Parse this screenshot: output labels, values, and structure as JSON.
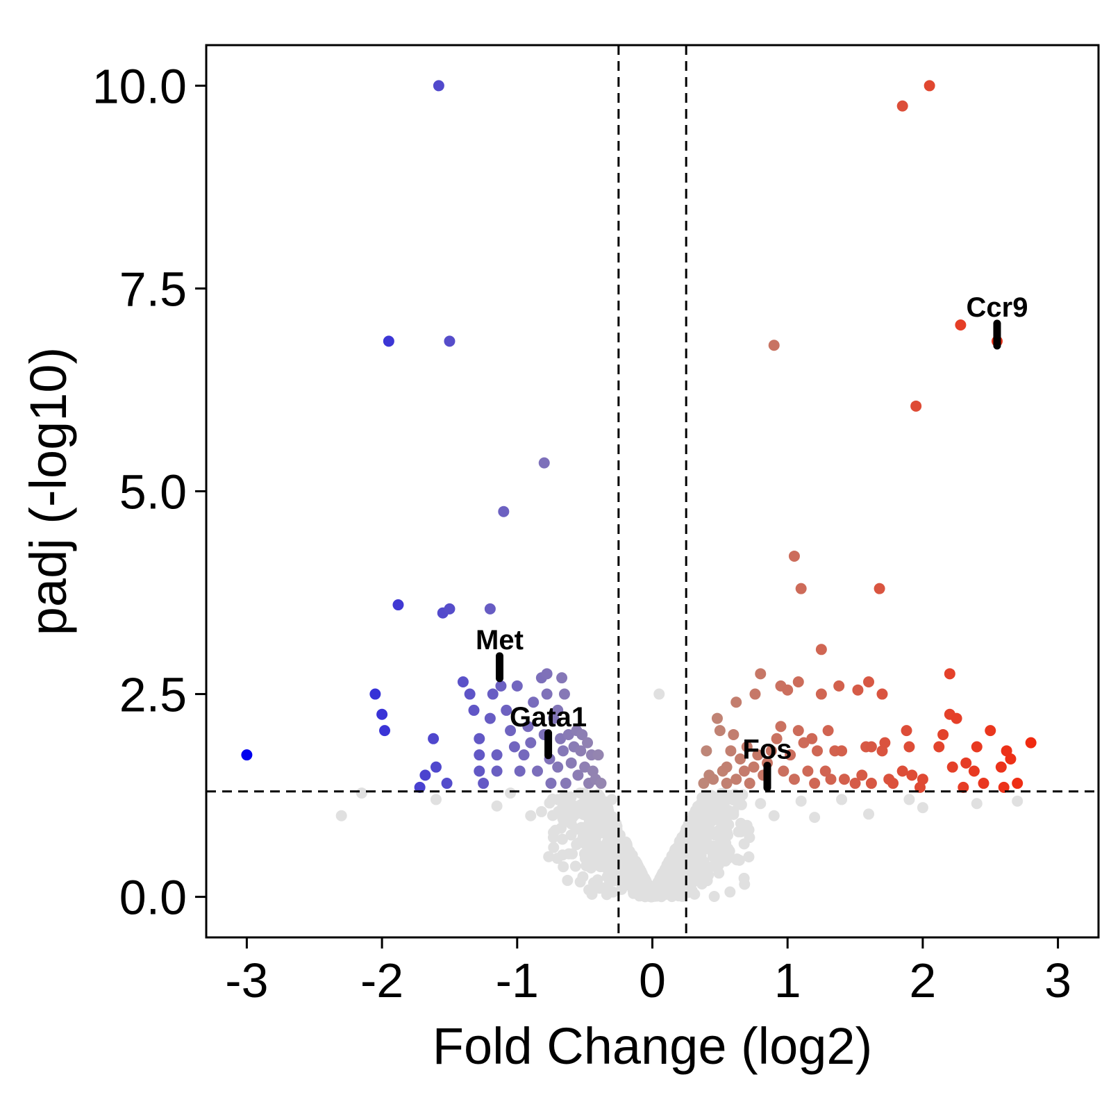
{
  "chart_data": {
    "type": "scatter",
    "title": "",
    "xlabel": "Fold Change (log2)",
    "ylabel": "padj (-log10)",
    "xlim": [
      -3.3,
      3.3
    ],
    "ylim": [
      -0.5,
      10.5
    ],
    "xticks": [
      -3,
      -2,
      -1,
      0,
      1,
      2,
      3
    ],
    "xtick_labels": [
      "-3",
      "-2",
      "-1",
      "0",
      "1",
      "2",
      "3"
    ],
    "yticks": [
      0,
      2.5,
      5,
      7.5,
      10
    ],
    "ytick_labels": [
      "0.0",
      "2.5",
      "5.0",
      "7.5",
      "10.0"
    ],
    "grid": false,
    "legend": "none",
    "thresholds": {
      "fold_change": [
        -0.25,
        0.25
      ],
      "padj": 1.3
    },
    "colors": {
      "not_significant": "#e0e0e0",
      "down_strong": "#0000ee",
      "down_weak": "#9a8aae",
      "up_weak": "#bc8a7c",
      "up_strong": "#f02a10",
      "label": "#000000"
    },
    "significant_points": [
      [
        -3.0,
        1.75
      ],
      [
        -2.05,
        2.5
      ],
      [
        -2.0,
        2.25
      ],
      [
        -1.98,
        2.05
      ],
      [
        -1.95,
        6.85
      ],
      [
        -1.88,
        3.6
      ],
      [
        -1.72,
        1.35
      ],
      [
        -1.68,
        1.5
      ],
      [
        -1.62,
        1.95
      ],
      [
        -1.6,
        1.6
      ],
      [
        -1.58,
        10.0
      ],
      [
        -1.55,
        3.5
      ],
      [
        -1.5,
        6.85
      ],
      [
        -1.5,
        3.55
      ],
      [
        -1.52,
        1.4
      ],
      [
        -1.4,
        2.65
      ],
      [
        -1.35,
        2.5
      ],
      [
        -1.32,
        2.3
      ],
      [
        -1.28,
        1.95
      ],
      [
        -1.28,
        1.75
      ],
      [
        -1.28,
        1.55
      ],
      [
        -1.25,
        1.4
      ],
      [
        -1.2,
        3.55
      ],
      [
        -1.18,
        2.5
      ],
      [
        -1.2,
        2.2
      ],
      [
        -1.15,
        1.55
      ],
      [
        -1.15,
        1.75
      ],
      [
        -1.12,
        2.6
      ],
      [
        -1.1,
        4.75
      ],
      [
        -1.08,
        2.3
      ],
      [
        -1.05,
        2.05
      ],
      [
        -1.02,
        1.85
      ],
      [
        -1.0,
        2.6
      ],
      [
        -0.98,
        1.55
      ],
      [
        -0.95,
        1.75
      ],
      [
        -0.92,
        2.1
      ],
      [
        -0.9,
        1.9
      ],
      [
        -0.88,
        2.4
      ],
      [
        -0.85,
        1.55
      ],
      [
        -0.82,
        2.7
      ],
      [
        -0.8,
        2.0
      ],
      [
        -0.8,
        5.35
      ],
      [
        -0.78,
        2.75
      ],
      [
        -0.78,
        2.5
      ],
      [
        -0.76,
        1.7
      ],
      [
        -0.75,
        1.4
      ],
      [
        -0.73,
        2.2
      ],
      [
        -0.7,
        2.3
      ],
      [
        -0.7,
        1.6
      ],
      [
        -0.68,
        1.95
      ],
      [
        -0.67,
        2.7
      ],
      [
        -0.66,
        1.8
      ],
      [
        -0.65,
        2.5
      ],
      [
        -0.64,
        1.4
      ],
      [
        -0.62,
        2.0
      ],
      [
        -0.6,
        1.65
      ],
      [
        -0.58,
        1.85
      ],
      [
        -0.56,
        2.05
      ],
      [
        -0.55,
        1.5
      ],
      [
        -0.53,
        1.8
      ],
      [
        -0.52,
        2.0
      ],
      [
        -0.5,
        1.6
      ],
      [
        -0.48,
        1.9
      ],
      [
        -0.47,
        1.4
      ],
      [
        -0.45,
        1.75
      ],
      [
        -0.44,
        1.55
      ],
      [
        -0.42,
        1.45
      ],
      [
        -0.4,
        1.75
      ],
      [
        -0.38,
        1.4
      ],
      [
        0.38,
        1.4
      ],
      [
        0.4,
        1.8
      ],
      [
        0.42,
        1.5
      ],
      [
        0.45,
        1.45
      ],
      [
        0.48,
        2.2
      ],
      [
        0.5,
        2.05
      ],
      [
        0.52,
        1.55
      ],
      [
        0.55,
        1.6
      ],
      [
        0.55,
        1.4
      ],
      [
        0.58,
        1.8
      ],
      [
        0.6,
        2.0
      ],
      [
        0.62,
        2.4
      ],
      [
        0.62,
        1.45
      ],
      [
        0.65,
        1.7
      ],
      [
        0.68,
        1.55
      ],
      [
        0.7,
        1.85
      ],
      [
        0.72,
        1.4
      ],
      [
        0.75,
        1.6
      ],
      [
        0.76,
        2.5
      ],
      [
        0.78,
        1.75
      ],
      [
        0.8,
        2.75
      ],
      [
        0.82,
        1.5
      ],
      [
        0.85,
        1.65
      ],
      [
        0.88,
        1.8
      ],
      [
        0.9,
        6.8
      ],
      [
        0.92,
        1.95
      ],
      [
        0.95,
        2.1
      ],
      [
        0.95,
        2.6
      ],
      [
        0.97,
        1.55
      ],
      [
        1.0,
        2.55
      ],
      [
        1.02,
        1.75
      ],
      [
        1.05,
        4.2
      ],
      [
        1.05,
        1.45
      ],
      [
        1.08,
        2.05
      ],
      [
        1.08,
        2.65
      ],
      [
        1.1,
        3.8
      ],
      [
        1.12,
        1.9
      ],
      [
        1.15,
        1.55
      ],
      [
        1.18,
        1.95
      ],
      [
        1.2,
        1.4
      ],
      [
        1.22,
        1.8
      ],
      [
        1.25,
        3.05
      ],
      [
        1.25,
        2.5
      ],
      [
        1.28,
        1.55
      ],
      [
        1.3,
        2.05
      ],
      [
        1.32,
        1.45
      ],
      [
        1.35,
        1.8
      ],
      [
        1.38,
        2.6
      ],
      [
        1.4,
        1.8
      ],
      [
        1.42,
        1.45
      ],
      [
        1.5,
        1.4
      ],
      [
        1.52,
        2.55
      ],
      [
        1.55,
        1.5
      ],
      [
        1.58,
        1.85
      ],
      [
        1.6,
        2.65
      ],
      [
        1.62,
        1.85
      ],
      [
        1.62,
        1.4
      ],
      [
        1.68,
        3.8
      ],
      [
        1.7,
        2.5
      ],
      [
        1.7,
        1.8
      ],
      [
        1.72,
        1.9
      ],
      [
        1.75,
        1.45
      ],
      [
        1.78,
        1.4
      ],
      [
        1.85,
        9.75
      ],
      [
        1.85,
        1.55
      ],
      [
        1.88,
        2.05
      ],
      [
        1.9,
        1.85
      ],
      [
        1.92,
        1.5
      ],
      [
        1.95,
        6.05
      ],
      [
        1.98,
        1.35
      ],
      [
        2.0,
        1.45
      ],
      [
        2.05,
        10.0
      ],
      [
        2.12,
        1.85
      ],
      [
        2.15,
        2.0
      ],
      [
        2.2,
        2.75
      ],
      [
        2.2,
        2.25
      ],
      [
        2.22,
        1.6
      ],
      [
        2.25,
        2.2
      ],
      [
        2.28,
        7.05
      ],
      [
        2.3,
        1.35
      ],
      [
        2.32,
        1.65
      ],
      [
        2.38,
        1.55
      ],
      [
        2.4,
        1.85
      ],
      [
        2.45,
        1.4
      ],
      [
        2.5,
        2.05
      ],
      [
        2.55,
        6.85
      ],
      [
        2.58,
        1.6
      ],
      [
        2.6,
        1.35
      ],
      [
        2.62,
        1.8
      ],
      [
        2.65,
        1.7
      ],
      [
        2.7,
        1.4
      ],
      [
        2.8,
        1.9
      ]
    ],
    "nonsignificant_points": [
      [
        -2.3,
        1.0
      ],
      [
        -2.15,
        1.28
      ],
      [
        -1.6,
        1.2
      ],
      [
        -1.15,
        1.12
      ],
      [
        -1.05,
        1.28
      ],
      [
        -0.9,
        1.0
      ],
      [
        -0.82,
        1.05
      ],
      [
        -0.7,
        1.2
      ],
      [
        -0.6,
        0.9
      ],
      [
        -0.52,
        1.05
      ],
      [
        -0.45,
        0.85
      ],
      [
        -0.42,
        1.18
      ],
      [
        -0.35,
        0.78
      ],
      [
        -0.32,
        0.95
      ],
      [
        -0.3,
        1.2
      ],
      [
        0.3,
        0.95
      ],
      [
        0.33,
        0.78
      ],
      [
        0.36,
        1.15
      ],
      [
        0.4,
        1.0
      ],
      [
        0.45,
        0.8
      ],
      [
        0.5,
        1.22
      ],
      [
        0.55,
        0.92
      ],
      [
        0.6,
        1.05
      ],
      [
        0.7,
        0.88
      ],
      [
        0.8,
        1.15
      ],
      [
        0.9,
        1.0
      ],
      [
        1.1,
        1.18
      ],
      [
        1.2,
        0.98
      ],
      [
        1.4,
        1.2
      ],
      [
        1.6,
        1.02
      ],
      [
        1.9,
        1.2
      ],
      [
        2.0,
        1.1
      ],
      [
        2.4,
        1.15
      ],
      [
        2.7,
        1.18
      ],
      [
        0.05,
        2.5
      ]
    ],
    "labeled_genes": [
      {
        "gene": "Met",
        "x": -1.13,
        "y": 2.9
      },
      {
        "gene": "Gata1",
        "x": -0.77,
        "y": 1.95
      },
      {
        "gene": "Fos",
        "x": 0.85,
        "y": 1.55
      },
      {
        "gene": "Ccr9",
        "x": 2.55,
        "y": 7.0
      }
    ]
  }
}
